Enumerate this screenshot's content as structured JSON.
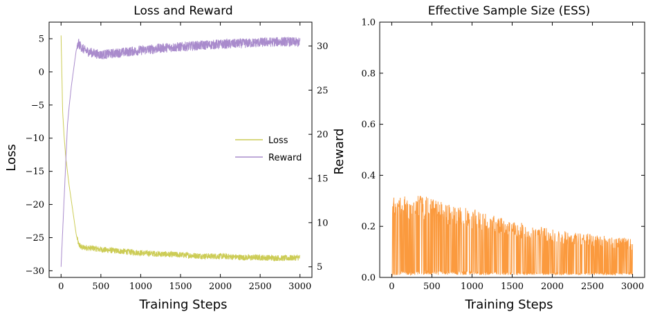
{
  "colors": {
    "loss": "#cccc55",
    "reward": "#a98bcc",
    "ess": "#fb9a3e"
  },
  "chart_data": [
    {
      "type": "line",
      "title": "Loss and Reward",
      "xlabel": "Training Steps",
      "ylabel": "Loss",
      "ylabel_right": "Reward",
      "xlim": [
        -150,
        3150
      ],
      "ylim": [
        -31,
        7.5
      ],
      "ylim_right": [
        3.8,
        32.7
      ],
      "xticks": [
        0,
        500,
        1000,
        1500,
        2000,
        2500,
        3000
      ],
      "xtick_labels": [
        "0",
        "500",
        "1000",
        "1500",
        "2000",
        "2500",
        "3000"
      ],
      "yticks": [
        5,
        0,
        -5,
        -10,
        -15,
        -20,
        -25,
        -30
      ],
      "ytick_labels": [
        "5",
        "0",
        "−5",
        "−10",
        "−15",
        "−20",
        "−25",
        "−30"
      ],
      "yticks_right": [
        30,
        25,
        20,
        15,
        10,
        5
      ],
      "ytick_labels_right": [
        "30",
        "25",
        "20",
        "15",
        "10",
        "5"
      ],
      "legend": {
        "position": "center-right",
        "entries": [
          "Loss",
          "Reward"
        ]
      },
      "series": [
        {
          "name": "Loss",
          "axis": "left",
          "x": [
            0,
            20,
            40,
            60,
            80,
            100,
            130,
            160,
            190,
            220,
            260,
            300,
            400,
            500,
            700,
            1000,
            1300,
            1500,
            1800,
            2000,
            2300,
            2500,
            2800,
            3000
          ],
          "y": [
            5.5,
            -6,
            -10,
            -13,
            -15,
            -17,
            -19.5,
            -22,
            -24.5,
            -26,
            -26.5,
            -26.5,
            -26.6,
            -26.8,
            -27,
            -27.3,
            -27.5,
            -27.6,
            -27.8,
            -27.8,
            -28,
            -28,
            -28.1,
            -28
          ]
        },
        {
          "name": "Reward",
          "axis": "right",
          "x": [
            0,
            20,
            40,
            60,
            80,
            100,
            130,
            160,
            190,
            220,
            260,
            300,
            400,
            500,
            700,
            1000,
            1300,
            1500,
            1800,
            2000,
            2300,
            2500,
            2800,
            3000
          ],
          "y": [
            5,
            9,
            13,
            17,
            21,
            23,
            25.5,
            27.5,
            29.5,
            30.3,
            29.8,
            29.5,
            29.2,
            29.0,
            29.2,
            29.5,
            29.8,
            29.9,
            30.1,
            30.2,
            30.3,
            30.4,
            30.5,
            30.4
          ]
        }
      ]
    },
    {
      "type": "line",
      "title": "Effective Sample Size (ESS)",
      "xlabel": "Training Steps",
      "ylabel": "",
      "xlim": [
        -150,
        3150
      ],
      "ylim": [
        0,
        1.0
      ],
      "xticks": [
        0,
        500,
        1000,
        1500,
        2000,
        2500,
        3000
      ],
      "xtick_labels": [
        "0",
        "500",
        "1000",
        "1500",
        "2000",
        "2500",
        "3000"
      ],
      "yticks": [
        0,
        0.2,
        0.4,
        0.6,
        0.8,
        1.0
      ],
      "ytick_labels": [
        "0.0",
        "0.2",
        "0.4",
        "0.6",
        "0.8",
        "1.0"
      ],
      "series": [
        {
          "x": [
            0,
            25,
            50,
            150,
            250,
            300,
            400,
            500,
            700,
            800,
            1000,
            1200,
            1400,
            1500,
            1700,
            2000,
            2200,
            2500,
            2800,
            3000
          ],
          "upper": [
            0.22,
            0.36,
            0.33,
            0.32,
            0.3,
            0.33,
            0.32,
            0.31,
            0.29,
            0.28,
            0.27,
            0.25,
            0.23,
            0.22,
            0.21,
            0.19,
            0.18,
            0.17,
            0.16,
            0.15
          ],
          "lower": [
            0.0,
            0.0,
            0.01,
            0.01,
            0.01,
            0.01,
            0.01,
            0.01,
            0.01,
            0.01,
            0.01,
            0.01,
            0.01,
            0.01,
            0.01,
            0.01,
            0.01,
            0.01,
            0.01,
            0.01
          ]
        }
      ]
    }
  ]
}
